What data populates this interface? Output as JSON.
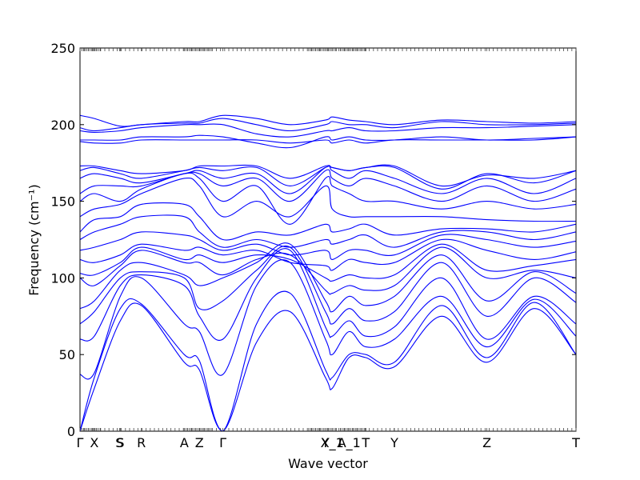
{
  "chart_data": {
    "type": "line",
    "title": "",
    "xlabel": "Wave vector",
    "ylabel": "Frequency (cm⁻¹)",
    "ylim": [
      0,
      250
    ],
    "xlim": [
      0,
      1.0
    ],
    "yticks": [
      0,
      50,
      100,
      150,
      200,
      250
    ],
    "ytick_labels": [
      "0",
      "50",
      "100",
      "150",
      "200",
      "250"
    ],
    "high_symmetry_points": [
      {
        "label": "Γ",
        "x": 0.0
      },
      {
        "label": "X",
        "x": 0.085
      },
      {
        "label": "S",
        "x": 0.235
      },
      {
        "label": "S",
        "x": 0.24
      },
      {
        "label": "R",
        "x": 0.365
      },
      {
        "label": "A",
        "x": 0.62
      },
      {
        "label": "Z",
        "x": 0.71
      },
      {
        "label": "Γ",
        "x": 0.85
      },
      {
        "label": "Y",
        "x": 1.46
      },
      {
        "label": "X_1",
        "x": 1.5
      },
      {
        "label": "A_1",
        "x": 1.6
      },
      {
        "label": "T",
        "x": 1.7
      },
      {
        "label": "Y",
        "x": 1.87
      },
      {
        "label": "Z",
        "x": 2.42
      },
      {
        "label": "T",
        "x": 2.95
      }
    ],
    "grid": false,
    "legend": "none",
    "series_color": "#0000ff",
    "knots_x": [
      0.0,
      0.085,
      0.24,
      0.365,
      0.62,
      0.71,
      0.85,
      1.05,
      1.25,
      1.46,
      1.5,
      1.6,
      1.7,
      1.87,
      2.15,
      2.42,
      2.7,
      2.95
    ],
    "series": [
      {
        "values": [
          0,
          28,
          72,
          82,
          45,
          40,
          0,
          58,
          78,
          35,
          28,
          48,
          48,
          42,
          75,
          45,
          80,
          50
        ]
      },
      {
        "values": [
          0,
          35,
          80,
          83,
          50,
          46,
          0,
          70,
          90,
          40,
          35,
          50,
          50,
          45,
          82,
          48,
          84,
          50
        ]
      },
      {
        "values": [
          37,
          38,
          88,
          100,
          70,
          65,
          37,
          95,
          110,
          60,
          50,
          65,
          55,
          60,
          88,
          55,
          86,
          62
        ]
      },
      {
        "values": [
          60,
          62,
          95,
          102,
          95,
          75,
          60,
          100,
          118,
          68,
          62,
          72,
          62,
          68,
          100,
          60,
          88,
          70
        ]
      },
      {
        "values": [
          70,
          78,
          100,
          104,
          100,
          80,
          85,
          105,
          120,
          78,
          70,
          80,
          72,
          78,
          110,
          75,
          100,
          84
        ]
      },
      {
        "values": [
          80,
          85,
          105,
          110,
          102,
          95,
          100,
          110,
          122,
          85,
          78,
          88,
          82,
          88,
          115,
          85,
          104,
          90
        ]
      },
      {
        "values": [
          100,
          95,
          108,
          118,
          110,
          110,
          102,
          112,
          115,
          92,
          90,
          95,
          92,
          95,
          120,
          100,
          105,
          100
        ]
      },
      {
        "values": [
          103,
          102,
          110,
          120,
          112,
          115,
          110,
          115,
          112,
          100,
          98,
          102,
          100,
          102,
          122,
          105,
          108,
          112
        ]
      },
      {
        "values": [
          112,
          110,
          115,
          122,
          118,
          120,
          115,
          118,
          110,
          108,
          105,
          112,
          110,
          110,
          125,
          118,
          112,
          117
        ]
      },
      {
        "values": [
          118,
          120,
          125,
          130,
          128,
          125,
          118,
          122,
          115,
          118,
          112,
          118,
          118,
          115,
          128,
          125,
          120,
          124
        ]
      },
      {
        "values": [
          125,
          130,
          135,
          140,
          140,
          130,
          120,
          125,
          120,
          125,
          122,
          125,
          128,
          120,
          130,
          130,
          125,
          130
        ]
      },
      {
        "values": [
          130,
          138,
          140,
          148,
          148,
          140,
          125,
          130,
          128,
          135,
          130,
          132,
          135,
          128,
          132,
          132,
          130,
          135
        ]
      },
      {
        "values": [
          140,
          145,
          148,
          155,
          165,
          160,
          140,
          150,
          140,
          160,
          145,
          140,
          140,
          140,
          140,
          138,
          137,
          137
        ]
      },
      {
        "values": [
          150,
          155,
          150,
          158,
          168,
          165,
          150,
          160,
          135,
          165,
          160,
          155,
          150,
          150,
          145,
          150,
          145,
          148
        ]
      },
      {
        "values": [
          155,
          160,
          160,
          160,
          168,
          168,
          160,
          165,
          150,
          170,
          165,
          160,
          165,
          160,
          150,
          160,
          150,
          158
        ]
      },
      {
        "values": [
          165,
          168,
          165,
          162,
          168,
          170,
          165,
          168,
          155,
          172,
          170,
          165,
          170,
          165,
          155,
          165,
          155,
          165
        ]
      },
      {
        "values": [
          170,
          172,
          168,
          165,
          170,
          172,
          170,
          172,
          160,
          172,
          172,
          170,
          172,
          172,
          158,
          168,
          162,
          170
        ]
      },
      {
        "values": [
          173,
          173,
          170,
          168,
          170,
          173,
          173,
          173,
          165,
          173,
          172,
          170,
          172,
          173,
          160,
          167,
          165,
          170
        ]
      },
      {
        "values": [
          189,
          188,
          188,
          190,
          190,
          190,
          190,
          190,
          188,
          190,
          188,
          190,
          188,
          190,
          190,
          190,
          190,
          192
        ]
      },
      {
        "values": [
          190,
          190,
          190,
          192,
          192,
          193,
          192,
          188,
          185,
          192,
          190,
          192,
          190,
          190,
          192,
          190,
          191,
          192
        ]
      },
      {
        "values": [
          196,
          195,
          196,
          198,
          200,
          200,
          200,
          194,
          192,
          196,
          196,
          198,
          196,
          196,
          198,
          198,
          199,
          200
        ]
      },
      {
        "values": [
          198,
          196,
          198,
          200,
          201,
          201,
          204,
          200,
          196,
          200,
          202,
          200,
          200,
          198,
          202,
          200,
          200,
          201
        ]
      },
      {
        "values": [
          206,
          204,
          199,
          200,
          202,
          202,
          206,
          204,
          200,
          203,
          205,
          203,
          202,
          200,
          203,
          202,
          201,
          202
        ]
      }
    ]
  }
}
